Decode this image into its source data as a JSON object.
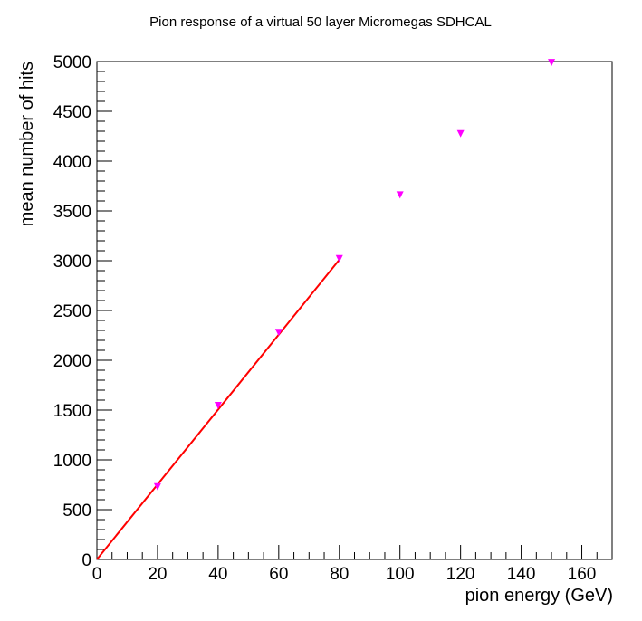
{
  "chart_data": {
    "type": "scatter",
    "title": "Pion response of a virtual 50 layer Micromegas SDHCAL",
    "xlabel": "pion energy (GeV)",
    "ylabel": "mean number of hits",
    "xlim": [
      0,
      170
    ],
    "ylim": [
      0,
      5000
    ],
    "x_ticks": [
      "0",
      "20",
      "40",
      "60",
      "80",
      "100",
      "120",
      "140",
      "160"
    ],
    "y_ticks": [
      "0",
      "500",
      "1000",
      "1500",
      "2000",
      "2500",
      "3000",
      "3500",
      "4000",
      "4500",
      "5000"
    ],
    "grid": false,
    "legend": "none",
    "series": [
      {
        "marker": "downward triangle",
        "color": "#ff00ff",
        "x": [
          20,
          40,
          60,
          80,
          100,
          120,
          150
        ],
        "y": [
          730,
          1545,
          2280,
          3020,
          3660,
          4275,
          4990
        ]
      }
    ],
    "fit_line": {
      "color": "#ff0000",
      "x": [
        0,
        80
      ],
      "y": [
        0,
        3010
      ]
    }
  }
}
